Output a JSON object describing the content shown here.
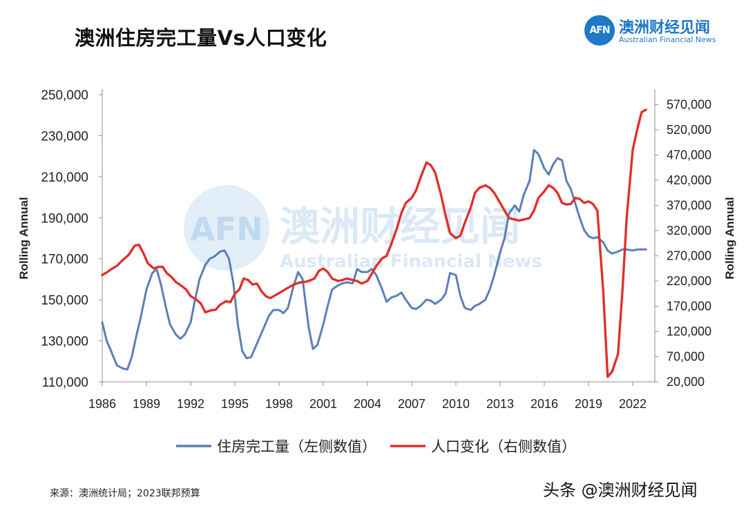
{
  "header": {
    "title": "澳洲住房完工量Vs人口变化",
    "logo_mark": "AFN",
    "logo_cn": "澳洲财经见闻",
    "logo_en": "Australian Financial News"
  },
  "watermark": {
    "mark": "AFN",
    "cn": "澳洲财经见闻",
    "en": "Australian Financial News"
  },
  "footer": {
    "source": "来源：澳洲统计局；2023联邦预算",
    "credit": "头条 @澳洲财经见闻"
  },
  "colors": {
    "housing": "#5b7fb5",
    "population": "#e0302b",
    "axis": "#888888"
  },
  "chart_data": {
    "type": "line",
    "title": "澳洲住房完工量Vs人口变化",
    "xlim": [
      1986,
      2023.5
    ],
    "x_ticks": [
      1986,
      1989,
      1992,
      1995,
      1998,
      2001,
      2004,
      2007,
      2010,
      2013,
      2016,
      2019,
      2022
    ],
    "y_left": {
      "label": "Rolling Annual",
      "range": [
        110000,
        250000
      ],
      "ticks": [
        "110,000",
        "130,000",
        "150,000",
        "170,000",
        "190,000",
        "210,000",
        "230,000",
        "250,000"
      ]
    },
    "y_right": {
      "label": "Rolling Annual",
      "range": [
        20000,
        590000
      ],
      "ticks": [
        "20,000",
        "70,000",
        "120,000",
        "170,000",
        "220,000",
        "270,000",
        "320,000",
        "370,000",
        "420,000",
        "470,000",
        "520,000",
        "570,000"
      ]
    },
    "series": [
      {
        "name": "住房完工量（左侧数值）",
        "axis": "left",
        "x": [
          1986.0,
          1986.3,
          1986.6,
          1987.0,
          1987.4,
          1987.7,
          1988.0,
          1988.3,
          1988.6,
          1989.0,
          1989.4,
          1989.7,
          1990.0,
          1990.3,
          1990.6,
          1991.0,
          1991.3,
          1991.6,
          1992.0,
          1992.3,
          1992.6,
          1993.0,
          1993.3,
          1993.6,
          1994.0,
          1994.3,
          1994.6,
          1994.9,
          1995.2,
          1995.5,
          1995.8,
          1996.1,
          1996.4,
          1996.7,
          1997.0,
          1997.3,
          1997.6,
          1998.0,
          1998.3,
          1998.6,
          1999.0,
          1999.3,
          1999.6,
          2000.0,
          2000.3,
          2000.6,
          2001.0,
          2001.3,
          2001.6,
          2002.0,
          2002.3,
          2002.6,
          2003.0,
          2003.3,
          2003.6,
          2004.0,
          2004.3,
          2004.6,
          2005.0,
          2005.3,
          2005.6,
          2006.0,
          2006.3,
          2006.6,
          2007.0,
          2007.3,
          2007.6,
          2008.0,
          2008.3,
          2008.6,
          2009.0,
          2009.3,
          2009.6,
          2010.0,
          2010.3,
          2010.6,
          2011.0,
          2011.3,
          2011.6,
          2012.0,
          2012.3,
          2012.6,
          2013.0,
          2013.3,
          2013.6,
          2014.0,
          2014.3,
          2014.6,
          2015.0,
          2015.3,
          2015.6,
          2016.0,
          2016.3,
          2016.6,
          2016.9,
          2017.2,
          2017.5,
          2017.8,
          2018.1,
          2018.4,
          2018.7,
          2019.0,
          2019.3,
          2019.6,
          2020.0,
          2020.3,
          2020.6,
          2021.0,
          2021.3,
          2021.6,
          2022.0,
          2022.3,
          2022.6,
          2022.9
        ],
        "values": [
          139000,
          130000,
          125000,
          118000,
          116500,
          116000,
          122000,
          132000,
          141000,
          155000,
          163000,
          165000,
          157000,
          147000,
          138000,
          133000,
          131000,
          133000,
          139000,
          150000,
          160000,
          167000,
          170000,
          171000,
          173500,
          174000,
          170000,
          158000,
          138000,
          125000,
          121500,
          122000,
          127000,
          132000,
          137000,
          142000,
          145000,
          145000,
          143500,
          146000,
          157000,
          163500,
          160000,
          137000,
          126000,
          128000,
          138000,
          147000,
          155000,
          157000,
          158000,
          158500,
          158000,
          165000,
          163500,
          163500,
          165000,
          162000,
          155000,
          149000,
          151000,
          152000,
          153500,
          150000,
          146000,
          145500,
          147000,
          150000,
          149500,
          148000,
          150000,
          153000,
          163000,
          162000,
          152000,
          146000,
          145000,
          147000,
          148000,
          150000,
          155000,
          162000,
          173000,
          180000,
          192000,
          196000,
          193000,
          201000,
          208000,
          223000,
          221000,
          214000,
          211000,
          216000,
          219000,
          218000,
          208000,
          204000,
          197000,
          190000,
          184000,
          181000,
          180000,
          180500,
          178000,
          174000,
          172500,
          173500,
          174500,
          174500,
          174000,
          174500,
          174500,
          174500
        ],
        "color": "#5b7fb5"
      },
      {
        "name": "人口变化（右侧数值）",
        "axis": "right",
        "x": [
          1986.0,
          1986.3,
          1986.6,
          1987.0,
          1987.4,
          1987.8,
          1988.2,
          1988.5,
          1988.8,
          1989.1,
          1989.5,
          1989.8,
          1990.1,
          1990.4,
          1990.7,
          1991.0,
          1991.4,
          1991.7,
          1992.0,
          1992.4,
          1992.7,
          1993.0,
          1993.4,
          1993.7,
          1994.0,
          1994.4,
          1994.7,
          1995.0,
          1995.3,
          1995.6,
          1995.9,
          1996.2,
          1996.5,
          1996.8,
          1997.1,
          1997.4,
          1997.7,
          1998.0,
          1998.4,
          1998.7,
          1999.0,
          1999.4,
          1999.7,
          2000.0,
          2000.4,
          2000.7,
          2001.0,
          2001.3,
          2001.6,
          2002.0,
          2002.3,
          2002.6,
          2003.0,
          2003.3,
          2003.6,
          2004.0,
          2004.3,
          2004.6,
          2005.0,
          2005.3,
          2005.6,
          2006.0,
          2006.3,
          2006.6,
          2007.0,
          2007.3,
          2007.6,
          2008.0,
          2008.3,
          2008.6,
          2009.0,
          2009.3,
          2009.6,
          2010.0,
          2010.3,
          2010.6,
          2011.0,
          2011.3,
          2011.6,
          2012.0,
          2012.3,
          2012.6,
          2013.0,
          2013.3,
          2013.6,
          2014.0,
          2014.3,
          2014.6,
          2015.0,
          2015.3,
          2015.6,
          2016.0,
          2016.3,
          2016.6,
          2016.9,
          2017.2,
          2017.5,
          2017.8,
          2018.1,
          2018.4,
          2018.7,
          2019.0,
          2019.3,
          2019.6,
          2020.0,
          2020.3,
          2020.6,
          2021.0,
          2021.3,
          2021.6,
          2022.0,
          2022.3,
          2022.6,
          2022.9
        ],
        "values": [
          232000,
          237000,
          243000,
          250000,
          262000,
          272000,
          290000,
          292000,
          275000,
          255000,
          245000,
          248000,
          248000,
          235000,
          228000,
          218000,
          210000,
          203000,
          190000,
          183000,
          175000,
          158000,
          162000,
          163000,
          173000,
          180000,
          178000,
          195000,
          203000,
          225000,
          222000,
          213000,
          215000,
          200000,
          190000,
          186000,
          191000,
          196000,
          203000,
          208000,
          213000,
          217000,
          218000,
          220000,
          225000,
          240000,
          245000,
          238000,
          225000,
          220000,
          222000,
          225000,
          222000,
          220000,
          215000,
          220000,
          235000,
          250000,
          265000,
          270000,
          292000,
          325000,
          355000,
          375000,
          385000,
          400000,
          425000,
          455000,
          450000,
          435000,
          390000,
          350000,
          315000,
          305000,
          310000,
          335000,
          365000,
          395000,
          405000,
          410000,
          405000,
          395000,
          375000,
          360000,
          345000,
          342000,
          340000,
          342000,
          345000,
          360000,
          385000,
          398000,
          410000,
          405000,
          395000,
          375000,
          372000,
          373000,
          385000,
          383000,
          375000,
          378000,
          373000,
          360000,
          200000,
          30000,
          40000,
          75000,
          200000,
          350000,
          480000,
          520000,
          555000,
          560000
        ],
        "color": "#e0302b"
      }
    ],
    "legend": [
      "住房完工量（左侧数值）",
      "人口变化（右侧数值）"
    ],
    "legend_position": "bottom"
  }
}
